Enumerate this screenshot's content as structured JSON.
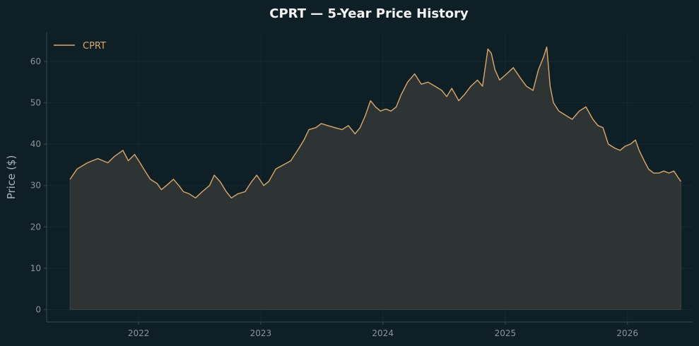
{
  "chart_data": {
    "type": "area",
    "title": "CPRT — 5-Year Price History",
    "xlabel": "",
    "ylabel": "Price ($)",
    "x_tick_labels": [
      "2022",
      "2023",
      "2024",
      "2025",
      "2026"
    ],
    "y_tick_labels": [
      "0",
      "10",
      "20",
      "30",
      "40",
      "50",
      "60"
    ],
    "xlim": [
      "2021-04-01",
      "2026-07-15"
    ],
    "ylim": [
      -3,
      67
    ],
    "grid": true,
    "legend": {
      "position": "top-left",
      "entries": [
        "CPRT"
      ]
    },
    "series": [
      {
        "name": "CPRT",
        "x": [
          "2021-06-10",
          "2021-07-01",
          "2021-08-01",
          "2021-09-01",
          "2021-10-01",
          "2021-10-20",
          "2021-11-15",
          "2021-12-01",
          "2021-12-20",
          "2022-01-05",
          "2022-01-20",
          "2022-02-05",
          "2022-02-25",
          "2022-03-10",
          "2022-03-25",
          "2022-04-15",
          "2022-05-01",
          "2022-05-15",
          "2022-06-01",
          "2022-06-20",
          "2022-07-10",
          "2022-08-01",
          "2022-08-15",
          "2022-09-01",
          "2022-09-20",
          "2022-10-05",
          "2022-10-25",
          "2022-11-15",
          "2022-12-05",
          "2022-12-20",
          "2023-01-10",
          "2023-01-25",
          "2023-02-15",
          "2023-03-10",
          "2023-04-01",
          "2023-04-25",
          "2023-05-10",
          "2023-05-25",
          "2023-06-15",
          "2023-07-01",
          "2023-07-20",
          "2023-08-10",
          "2023-09-01",
          "2023-09-20",
          "2023-10-10",
          "2023-10-25",
          "2023-11-10",
          "2023-11-25",
          "2023-12-10",
          "2023-12-25",
          "2024-01-10",
          "2024-01-25",
          "2024-02-10",
          "2024-02-25",
          "2024-03-15",
          "2024-04-05",
          "2024-04-25",
          "2024-05-15",
          "2024-06-05",
          "2024-06-25",
          "2024-07-10",
          "2024-07-25",
          "2024-08-15",
          "2024-09-01",
          "2024-09-20",
          "2024-10-10",
          "2024-10-25",
          "2024-11-10",
          "2024-11-20",
          "2024-12-01",
          "2024-12-15",
          "2025-01-05",
          "2025-01-25",
          "2025-02-15",
          "2025-03-05",
          "2025-03-25",
          "2025-04-10",
          "2025-04-25",
          "2025-05-05",
          "2025-05-15",
          "2025-05-25",
          "2025-06-10",
          "2025-06-30",
          "2025-07-20",
          "2025-08-10",
          "2025-08-30",
          "2025-09-20",
          "2025-10-05",
          "2025-10-20",
          "2025-11-05",
          "2025-11-25",
          "2025-12-10",
          "2025-12-25",
          "2026-01-10",
          "2026-01-25",
          "2026-02-05",
          "2026-02-20",
          "2026-03-05",
          "2026-03-20",
          "2026-04-05",
          "2026-04-20",
          "2026-05-05",
          "2026-05-20",
          "2026-06-01",
          "2026-06-10"
        ],
        "values": [
          31.5,
          34.0,
          35.5,
          36.5,
          35.5,
          37.0,
          38.5,
          36.0,
          37.5,
          35.5,
          33.5,
          31.5,
          30.5,
          29.0,
          30.0,
          31.5,
          30.0,
          28.5,
          28.0,
          27.0,
          28.5,
          30.0,
          32.5,
          31.0,
          28.5,
          27.0,
          28.0,
          28.5,
          31.0,
          32.5,
          30.0,
          31.0,
          34.0,
          35.0,
          36.0,
          39.0,
          41.0,
          43.5,
          44.0,
          45.0,
          44.5,
          44.0,
          43.5,
          44.5,
          42.5,
          44.0,
          47.0,
          50.5,
          49.0,
          48.0,
          48.5,
          48.0,
          49.0,
          52.0,
          55.0,
          57.0,
          54.5,
          55.0,
          54.0,
          53.0,
          51.5,
          53.5,
          50.5,
          52.0,
          54.0,
          55.5,
          54.0,
          63.0,
          62.0,
          58.0,
          55.5,
          57.0,
          58.5,
          56.0,
          54.0,
          53.0,
          58.0,
          61.0,
          63.5,
          54.0,
          50.0,
          48.0,
          47.0,
          46.0,
          48.0,
          49.0,
          46.0,
          44.5,
          44.0,
          40.0,
          39.0,
          38.5,
          39.5,
          40.0,
          41.0,
          38.5,
          36.0,
          34.0,
          33.0,
          33.0,
          33.5,
          33.0,
          33.5,
          32.0,
          31.0
        ]
      }
    ]
  },
  "colors": {
    "background": "#0f1f26",
    "line": "#d9a86c",
    "fill": "#2e3333",
    "grid": "#162a31",
    "axis": "#3a4a50",
    "tick_label": "#8a959b",
    "title": "#f2f2f2"
  }
}
